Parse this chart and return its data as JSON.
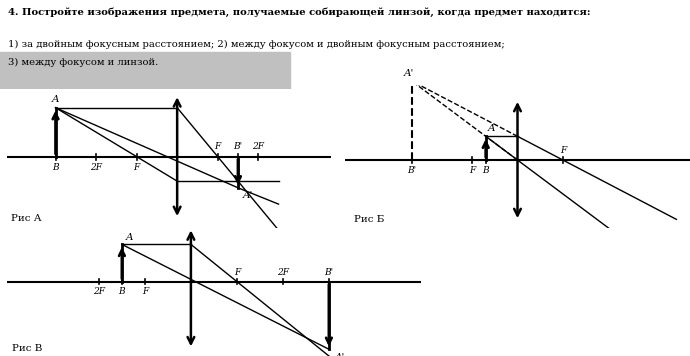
{
  "title_text": "4. Постройте изображения предмета, получаемые собирающей линзой, когда предмет находится:",
  "line1": "1) за двойным фокусным расстоянием; 2) между фокусом и двойным фокусным расстоянием;",
  "line2": "3) между фокусом и линзой.",
  "bg_color": "#ffffff",
  "header_bg": "#c8c8c8"
}
